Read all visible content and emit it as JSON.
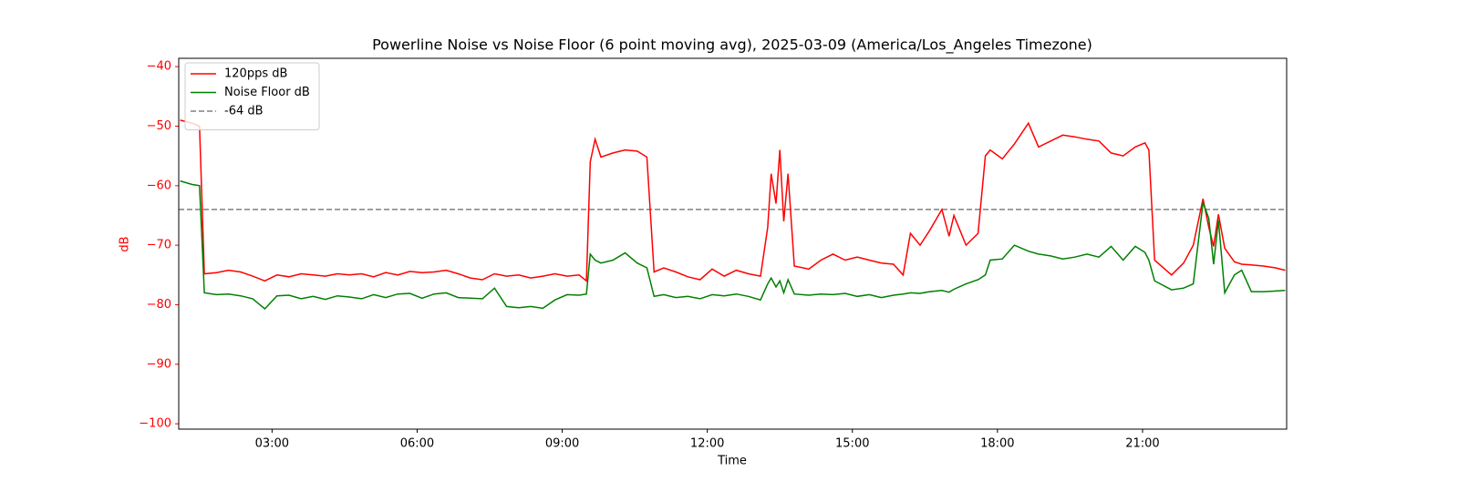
{
  "chart_data": {
    "type": "line",
    "title": "Powerline Noise vs Noise Floor (6 point moving avg), 2025-03-09 (America/Los_Angeles Timezone)",
    "xlabel": "Time",
    "ylabel": "dB",
    "axis_color": "#ff0000",
    "x": [
      1.1,
      1.35,
      1.5,
      1.6,
      1.85,
      2.1,
      2.35,
      2.6,
      2.85,
      3.1,
      3.35,
      3.6,
      3.85,
      4.1,
      4.35,
      4.6,
      4.85,
      5.1,
      5.35,
      5.6,
      5.85,
      6.1,
      6.35,
      6.6,
      6.85,
      7.1,
      7.35,
      7.6,
      7.85,
      8.1,
      8.35,
      8.6,
      8.85,
      9.1,
      9.35,
      9.5,
      9.58,
      9.68,
      9.8,
      10.05,
      10.3,
      10.55,
      10.75,
      10.9,
      11.1,
      11.35,
      11.6,
      11.85,
      12.1,
      12.35,
      12.6,
      12.85,
      13.1,
      13.25,
      13.32,
      13.42,
      13.5,
      13.58,
      13.67,
      13.8,
      14.1,
      14.35,
      14.6,
      14.85,
      15.1,
      15.35,
      15.6,
      15.85,
      16.05,
      16.2,
      16.4,
      16.6,
      16.85,
      17.0,
      17.1,
      17.35,
      17.6,
      17.75,
      17.85,
      18.1,
      18.35,
      18.64,
      18.85,
      19.1,
      19.35,
      19.6,
      19.85,
      20.1,
      20.35,
      20.6,
      20.85,
      21.05,
      21.13,
      21.25,
      21.6,
      21.85,
      22.05,
      22.25,
      22.37,
      22.47,
      22.57,
      22.7,
      22.9,
      23.05,
      23.25,
      23.5,
      23.75,
      23.95
    ],
    "series": [
      {
        "name": "120pps dB",
        "color": "#ff0000",
        "values": [
          -49,
          -49.5,
          -50,
          -74.8,
          -74.6,
          -74.2,
          -74.5,
          -75.2,
          -76,
          -75,
          -75.3,
          -74.8,
          -75,
          -75.2,
          -74.8,
          -75,
          -74.8,
          -75.3,
          -74.6,
          -75,
          -74.4,
          -74.6,
          -74.5,
          -74.2,
          -74.8,
          -75.5,
          -75.8,
          -74.8,
          -75.2,
          -75,
          -75.5,
          -75.2,
          -74.8,
          -75.2,
          -75,
          -76,
          -56,
          -52.2,
          -55.2,
          -54.5,
          -54,
          -54.2,
          -55.2,
          -74.5,
          -73.8,
          -74.5,
          -75.3,
          -75.8,
          -74,
          -75.2,
          -74.2,
          -74.8,
          -75.2,
          -67,
          -58,
          -63,
          -54,
          -66,
          -58,
          -73.5,
          -74,
          -72.5,
          -71.5,
          -72.5,
          -72,
          -72.5,
          -73,
          -73.2,
          -75,
          -68,
          -70,
          -67.5,
          -64,
          -68.5,
          -65,
          -70,
          -68,
          -55,
          -54,
          -55.5,
          -53,
          -49.5,
          -53.5,
          -52.5,
          -51.5,
          -51.8,
          -52.2,
          -52.5,
          -54.5,
          -55,
          -53.5,
          -52.8,
          -54,
          -72.5,
          -75,
          -73,
          -70,
          -62.2,
          -67,
          -70.2,
          -64.8,
          -70.5,
          -72.8,
          -73.2,
          -73.3,
          -73.5,
          -73.8,
          -74.2
        ]
      },
      {
        "name": "Noise Floor dB",
        "color": "#008000",
        "values": [
          -59.2,
          -59.8,
          -60,
          -78,
          -78.3,
          -78.2,
          -78.5,
          -79,
          -80.7,
          -78.5,
          -78.4,
          -79,
          -78.6,
          -79.1,
          -78.5,
          -78.7,
          -79,
          -78.3,
          -78.8,
          -78.2,
          -78.1,
          -78.9,
          -78.2,
          -78,
          -78.8,
          -78.9,
          -79,
          -77.2,
          -80.3,
          -80.5,
          -80.3,
          -80.6,
          -79.2,
          -78.3,
          -78.4,
          -78.2,
          -71.5,
          -72.5,
          -73,
          -72.5,
          -71.3,
          -73,
          -73.8,
          -78.6,
          -78.3,
          -78.8,
          -78.6,
          -79,
          -78.3,
          -78.5,
          -78.2,
          -78.6,
          -79.2,
          -76.5,
          -75.5,
          -77,
          -76,
          -78,
          -75.8,
          -78.2,
          -78.4,
          -78.2,
          -78.3,
          -78.1,
          -78.6,
          -78.3,
          -78.8,
          -78.4,
          -78.2,
          -78,
          -78.1,
          -77.8,
          -77.6,
          -77.9,
          -77.4,
          -76.5,
          -75.8,
          -75,
          -72.5,
          -72.3,
          -70,
          -71,
          -71.5,
          -71.8,
          -72.3,
          -72,
          -71.5,
          -72,
          -70.2,
          -72.5,
          -70.2,
          -71.2,
          -72.5,
          -76,
          -77.5,
          -77.2,
          -76.5,
          -62.8,
          -65.5,
          -73.2,
          -65.8,
          -78,
          -75,
          -74.2,
          -77.8,
          -77.8,
          -77.7,
          -77.6
        ]
      }
    ],
    "reference_lines": [
      {
        "name": "-64 dB",
        "value": -64,
        "color": "#808080"
      }
    ],
    "xlim": [
      1.07,
      23.98
    ],
    "xticks": [
      {
        "value": 3,
        "label": "03:00"
      },
      {
        "value": 6,
        "label": "06:00"
      },
      {
        "value": 9,
        "label": "09:00"
      },
      {
        "value": 12,
        "label": "12:00"
      },
      {
        "value": 15,
        "label": "15:00"
      },
      {
        "value": 18,
        "label": "18:00"
      },
      {
        "value": 21,
        "label": "21:00"
      }
    ],
    "ylim": [
      -100.9,
      -38.6
    ],
    "yticks": [
      {
        "value": -40,
        "label": "−40"
      },
      {
        "value": -50,
        "label": "−50"
      },
      {
        "value": -60,
        "label": "−60"
      },
      {
        "value": -70,
        "label": "−70"
      },
      {
        "value": -80,
        "label": "−80"
      },
      {
        "value": -90,
        "label": "−90"
      },
      {
        "value": -100,
        "label": "−100"
      }
    ],
    "legend": "upper left"
  }
}
